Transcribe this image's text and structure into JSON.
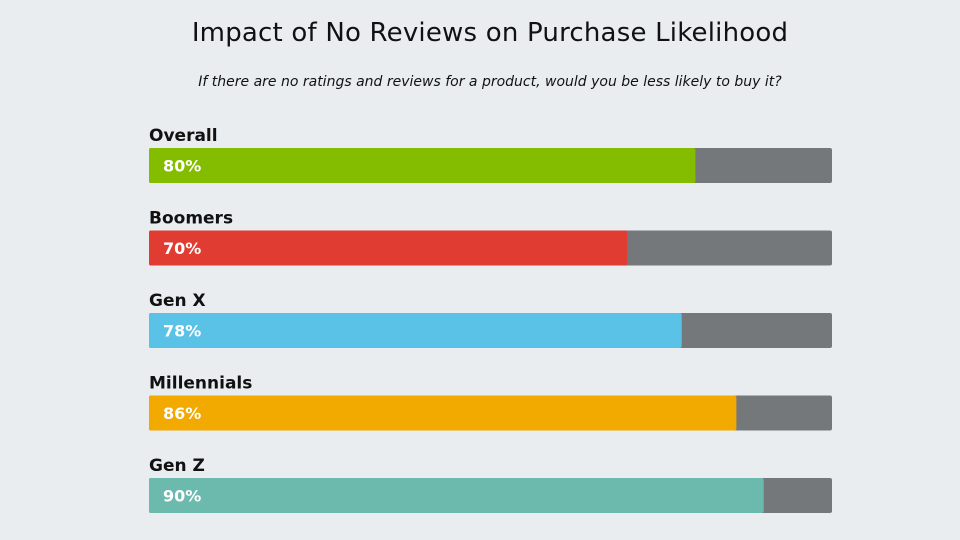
{
  "chart_data": {
    "type": "bar",
    "orientation": "horizontal",
    "title": "Impact of No Reviews on Purchase Likelihood",
    "subtitle": "If there are no ratings and reviews for a product, would you be less likely to buy it?",
    "categories": [
      "Overall",
      "Boomers",
      "Gen X",
      "Millennials",
      "Gen Z"
    ],
    "values": [
      80,
      70,
      78,
      86,
      90
    ],
    "value_labels": [
      "80%",
      "70%",
      "78%",
      "86%",
      "90%"
    ],
    "xlim": [
      0,
      100
    ],
    "unit": "%",
    "grid": false,
    "legend": "none",
    "colors": [
      "#84bd00",
      "#e03c31",
      "#5bc2e7",
      "#f2a900",
      "#6cbaae"
    ],
    "track_color": "#75787b"
  }
}
